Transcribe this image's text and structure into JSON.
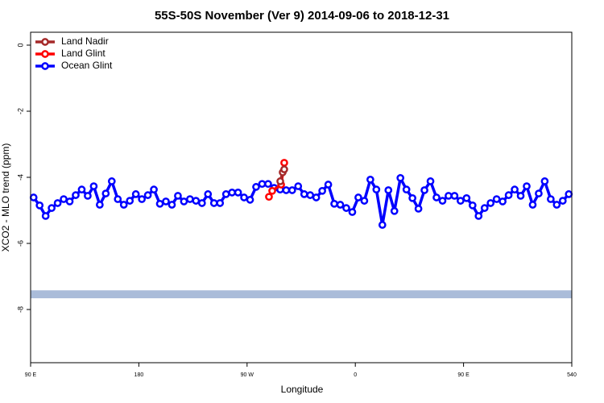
{
  "chart_data": {
    "type": "line",
    "title": "55S-50S November (Ver 9)   2014-09-06 to 2018-12-31",
    "xlabel": "Longitude",
    "ylabel": "XCO2 - MLO trend (ppm)",
    "xlim": [
      90,
      540
    ],
    "xticks": [
      {
        "value": 90,
        "label": "90 E"
      },
      180,
      {
        "value": 270,
        "label": "90 W"
      },
      {
        "value": 360,
        "label": "0"
      },
      {
        "value": 450,
        "label": "90 E"
      },
      540
    ],
    "ylim": [
      -9.61,
      0.39
    ],
    "yticks": [
      0,
      -2,
      -4,
      -6,
      -8
    ],
    "legend": "top-left",
    "band": {
      "color": "#aabcd9",
      "values": [
        -7.42,
        -7.66
      ]
    },
    "series": [
      {
        "name": "Land Nadir",
        "color": "#a52a2a",
        "x": [
          297.6,
          299.6,
          300.9
        ],
        "values": [
          -4.12,
          -3.85,
          -3.76
        ]
      },
      {
        "name": "Land Glint",
        "color": "#ff0000",
        "x": [
          288.2,
          290.9,
          298.3,
          300.9
        ],
        "values": [
          -4.59,
          -4.41,
          -4.22,
          -3.56
        ]
      },
      {
        "name": "Ocean Glint",
        "color": "#0000ff",
        "x": [
          92.5,
          97.5,
          102.5,
          107.5,
          112.5,
          117.5,
          122.5,
          127.5,
          132.5,
          137.5,
          142.5,
          147.5,
          152.5,
          157.5,
          162.5,
          167.5,
          172.5,
          177.5,
          182.5,
          187.5,
          192.5,
          197.5,
          202.5,
          207.5,
          212.5,
          217.5,
          222.5,
          227.5,
          232.5,
          237.5,
          242.5,
          247.5,
          252.5,
          257.5,
          262.5,
          267.5,
          272.5,
          277.5,
          282.5,
          287.5,
          292.5,
          297.5,
          302.5,
          307.5,
          312.5,
          317.5,
          322.5,
          327.5,
          332.5,
          337.5,
          342.5,
          347.5,
          352.5,
          357.5,
          362.5,
          367.5,
          372.5,
          377.5,
          382.5,
          387.5,
          392.5,
          397.5,
          402.5,
          407.5,
          412.5,
          417.5,
          422.5,
          427.5,
          432.5,
          437.5,
          442.5,
          447.5,
          452.5,
          457.5,
          462.5,
          467.5,
          472.5,
          477.5,
          482.5,
          487.5,
          492.5,
          497.5,
          502.5,
          507.5,
          512.5,
          517.5,
          522.5,
          527.5,
          532.5,
          537.5
        ],
        "values": [
          -4.61,
          -4.85,
          -5.17,
          -4.93,
          -4.78,
          -4.66,
          -4.73,
          -4.54,
          -4.37,
          -4.56,
          -4.27,
          -4.83,
          -4.49,
          -4.12,
          -4.66,
          -4.83,
          -4.71,
          -4.51,
          -4.66,
          -4.54,
          -4.37,
          -4.8,
          -4.73,
          -4.83,
          -4.56,
          -4.73,
          -4.66,
          -4.71,
          -4.78,
          -4.51,
          -4.78,
          -4.78,
          -4.51,
          -4.46,
          -4.46,
          -4.61,
          -4.68,
          -4.29,
          -4.2,
          -4.2,
          -4.32,
          -4.37,
          -4.39,
          -4.39,
          -4.27,
          -4.51,
          -4.54,
          -4.61,
          -4.41,
          -4.22,
          -4.8,
          -4.83,
          -4.93,
          -5.05,
          -4.61,
          -4.71,
          -4.07,
          -4.37,
          -5.44,
          -4.39,
          -5.02,
          -4.02,
          -4.37,
          -4.63,
          -4.95,
          -4.39,
          -4.12,
          -4.61,
          -4.71,
          -4.56,
          -4.56,
          -4.71,
          -4.63,
          -4.85,
          -5.17,
          -4.93,
          -4.78,
          -4.66,
          -4.73,
          -4.54,
          -4.37,
          -4.56,
          -4.27,
          -4.83,
          -4.49,
          -4.12,
          -4.66,
          -4.83,
          -4.71,
          -4.51
        ]
      }
    ]
  }
}
